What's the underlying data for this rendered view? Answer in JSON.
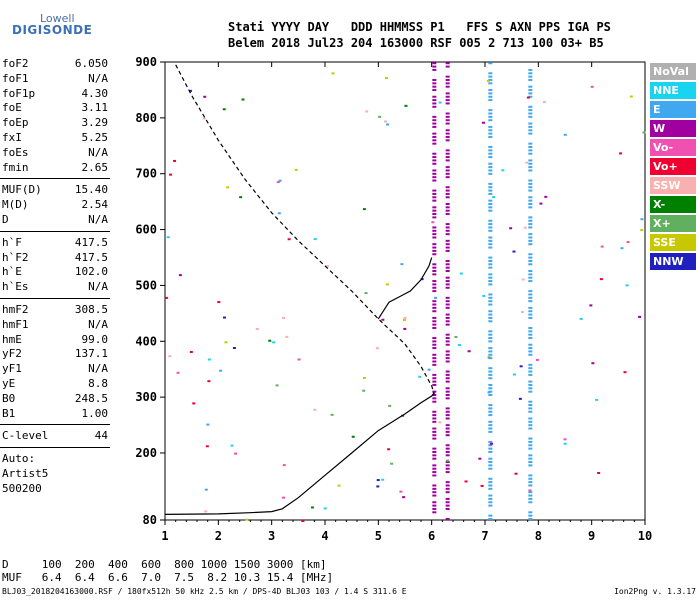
{
  "logo": {
    "line1": "Lowell",
    "line2": "DIGISONDE"
  },
  "header": {
    "line1": "Stati YYYY DAY   DDD HHMMSS P1   FFS S AXN PPS IGA PS",
    "line2": "Belem 2018 Jul23 204 163000 RSF 005 2 713 100 03+ B5"
  },
  "params": {
    "group1": [
      {
        "k": "foF2",
        "v": "6.050"
      },
      {
        "k": "foF1",
        "v": "N/A"
      },
      {
        "k": "foF1p",
        "v": "4.30"
      },
      {
        "k": "foE",
        "v": "3.11"
      },
      {
        "k": "foEp",
        "v": "3.29"
      },
      {
        "k": "fxI",
        "v": "5.25"
      },
      {
        "k": "foEs",
        "v": "N/A"
      },
      {
        "k": "fmin",
        "v": "2.65"
      }
    ],
    "group2": [
      {
        "k": "MUF(D)",
        "v": "15.40"
      },
      {
        "k": "M(D)",
        "v": "2.54"
      },
      {
        "k": "D",
        "v": "N/A"
      }
    ],
    "group3": [
      {
        "k": "h`F",
        "v": "417.5"
      },
      {
        "k": "h`F2",
        "v": "417.5"
      },
      {
        "k": "h`E",
        "v": "102.0"
      },
      {
        "k": "h`Es",
        "v": "N/A"
      }
    ],
    "group4": [
      {
        "k": "hmF2",
        "v": "308.5"
      },
      {
        "k": "hmF1",
        "v": "N/A"
      },
      {
        "k": "hmE",
        "v": "99.0"
      },
      {
        "k": "yF2",
        "v": "137.1"
      },
      {
        "k": "yF1",
        "v": "N/A"
      },
      {
        "k": "yE",
        "v": "8.8"
      },
      {
        "k": "B0",
        "v": "248.5"
      },
      {
        "k": "B1",
        "v": "1.00"
      }
    ],
    "group5": [
      {
        "k": "C-level",
        "v": "44"
      }
    ],
    "group6": [
      {
        "k": "Auto:",
        "v": ""
      },
      {
        "k": "Artist5",
        "v": ""
      },
      {
        "k": "500200",
        "v": ""
      }
    ]
  },
  "legend": [
    {
      "label": "NoVal",
      "color": "#b0b0b0"
    },
    {
      "label": "NNE",
      "color": "#19d4f0"
    },
    {
      "label": "E",
      "color": "#40a8f0"
    },
    {
      "label": "W",
      "color": "#a000a0"
    },
    {
      "label": "Vo-",
      "color": "#f050b0"
    },
    {
      "label": "Vo+",
      "color": "#f00030"
    },
    {
      "label": "SSW",
      "color": "#f8b0b0"
    },
    {
      "label": "X-",
      "color": "#008000"
    },
    {
      "label": "X+",
      "color": "#60b060"
    },
    {
      "label": "SSE",
      "color": "#c8c800"
    },
    {
      "label": "NNW",
      "color": "#2020c0"
    }
  ],
  "bottom": {
    "d_row": "D     100  200  400  600  800 1000 1500 3000 [km]",
    "muf_row": "MUF   6.4  6.4  6.6  7.0  7.5  8.2 10.3 15.4 [MHz]"
  },
  "footer": {
    "left": "BLJ03_2018204163000.RSF / 180fx512h 50 kHz 2.5 km / DPS-4D BLJ03 103 / 1.4 S 311.6 E",
    "right": "Ion2Png v. 1.3.17"
  },
  "chart_data": {
    "type": "scatter",
    "title": "",
    "xlabel": "",
    "ylabel": "",
    "xlim": [
      1,
      10
    ],
    "ylim": [
      80,
      900
    ],
    "x_ticks": [
      1,
      2,
      3,
      4,
      5,
      6,
      7,
      8,
      9,
      10
    ],
    "y_ticks": [
      80,
      200,
      300,
      400,
      500,
      600,
      700,
      800,
      900
    ],
    "grid": false,
    "legend_position": "right",
    "traces": [
      {
        "name": "profile-dashed",
        "style": "dashed",
        "x": [
          1.2,
          1.5,
          2.0,
          2.5,
          3.0,
          3.5,
          4.0,
          4.5,
          5.0,
          5.5,
          5.8,
          6.0,
          6.05
        ],
        "y": [
          895,
          840,
          760,
          690,
          630,
          580,
          535,
          490,
          440,
          395,
          355,
          320,
          305
        ]
      },
      {
        "name": "profile-solid-lower",
        "style": "solid",
        "x": [
          1.0,
          2.0,
          2.6,
          3.0,
          3.2,
          3.5,
          4.0,
          4.5,
          5.0,
          5.5,
          5.8,
          6.0,
          6.05
        ],
        "y": [
          90,
          91,
          93,
          95,
          100,
          120,
          160,
          200,
          240,
          270,
          290,
          302,
          308
        ]
      },
      {
        "name": "trace-F",
        "style": "solid",
        "x": [
          5.0,
          5.2,
          5.4,
          5.6,
          5.8,
          5.95,
          6.0
        ],
        "y": [
          440,
          470,
          480,
          490,
          510,
          535,
          550
        ]
      }
    ],
    "columns": [
      {
        "x": 6.05,
        "color": "#a000a0",
        "y": [
          80,
          900
        ]
      },
      {
        "x": 6.3,
        "color": "#a000a0",
        "y": [
          80,
          900
        ]
      },
      {
        "x": 7.1,
        "color": "#40a8f0",
        "y": [
          80,
          900
        ]
      },
      {
        "x": 7.85,
        "color": "#40a8f0",
        "y": [
          80,
          900
        ]
      }
    ]
  }
}
